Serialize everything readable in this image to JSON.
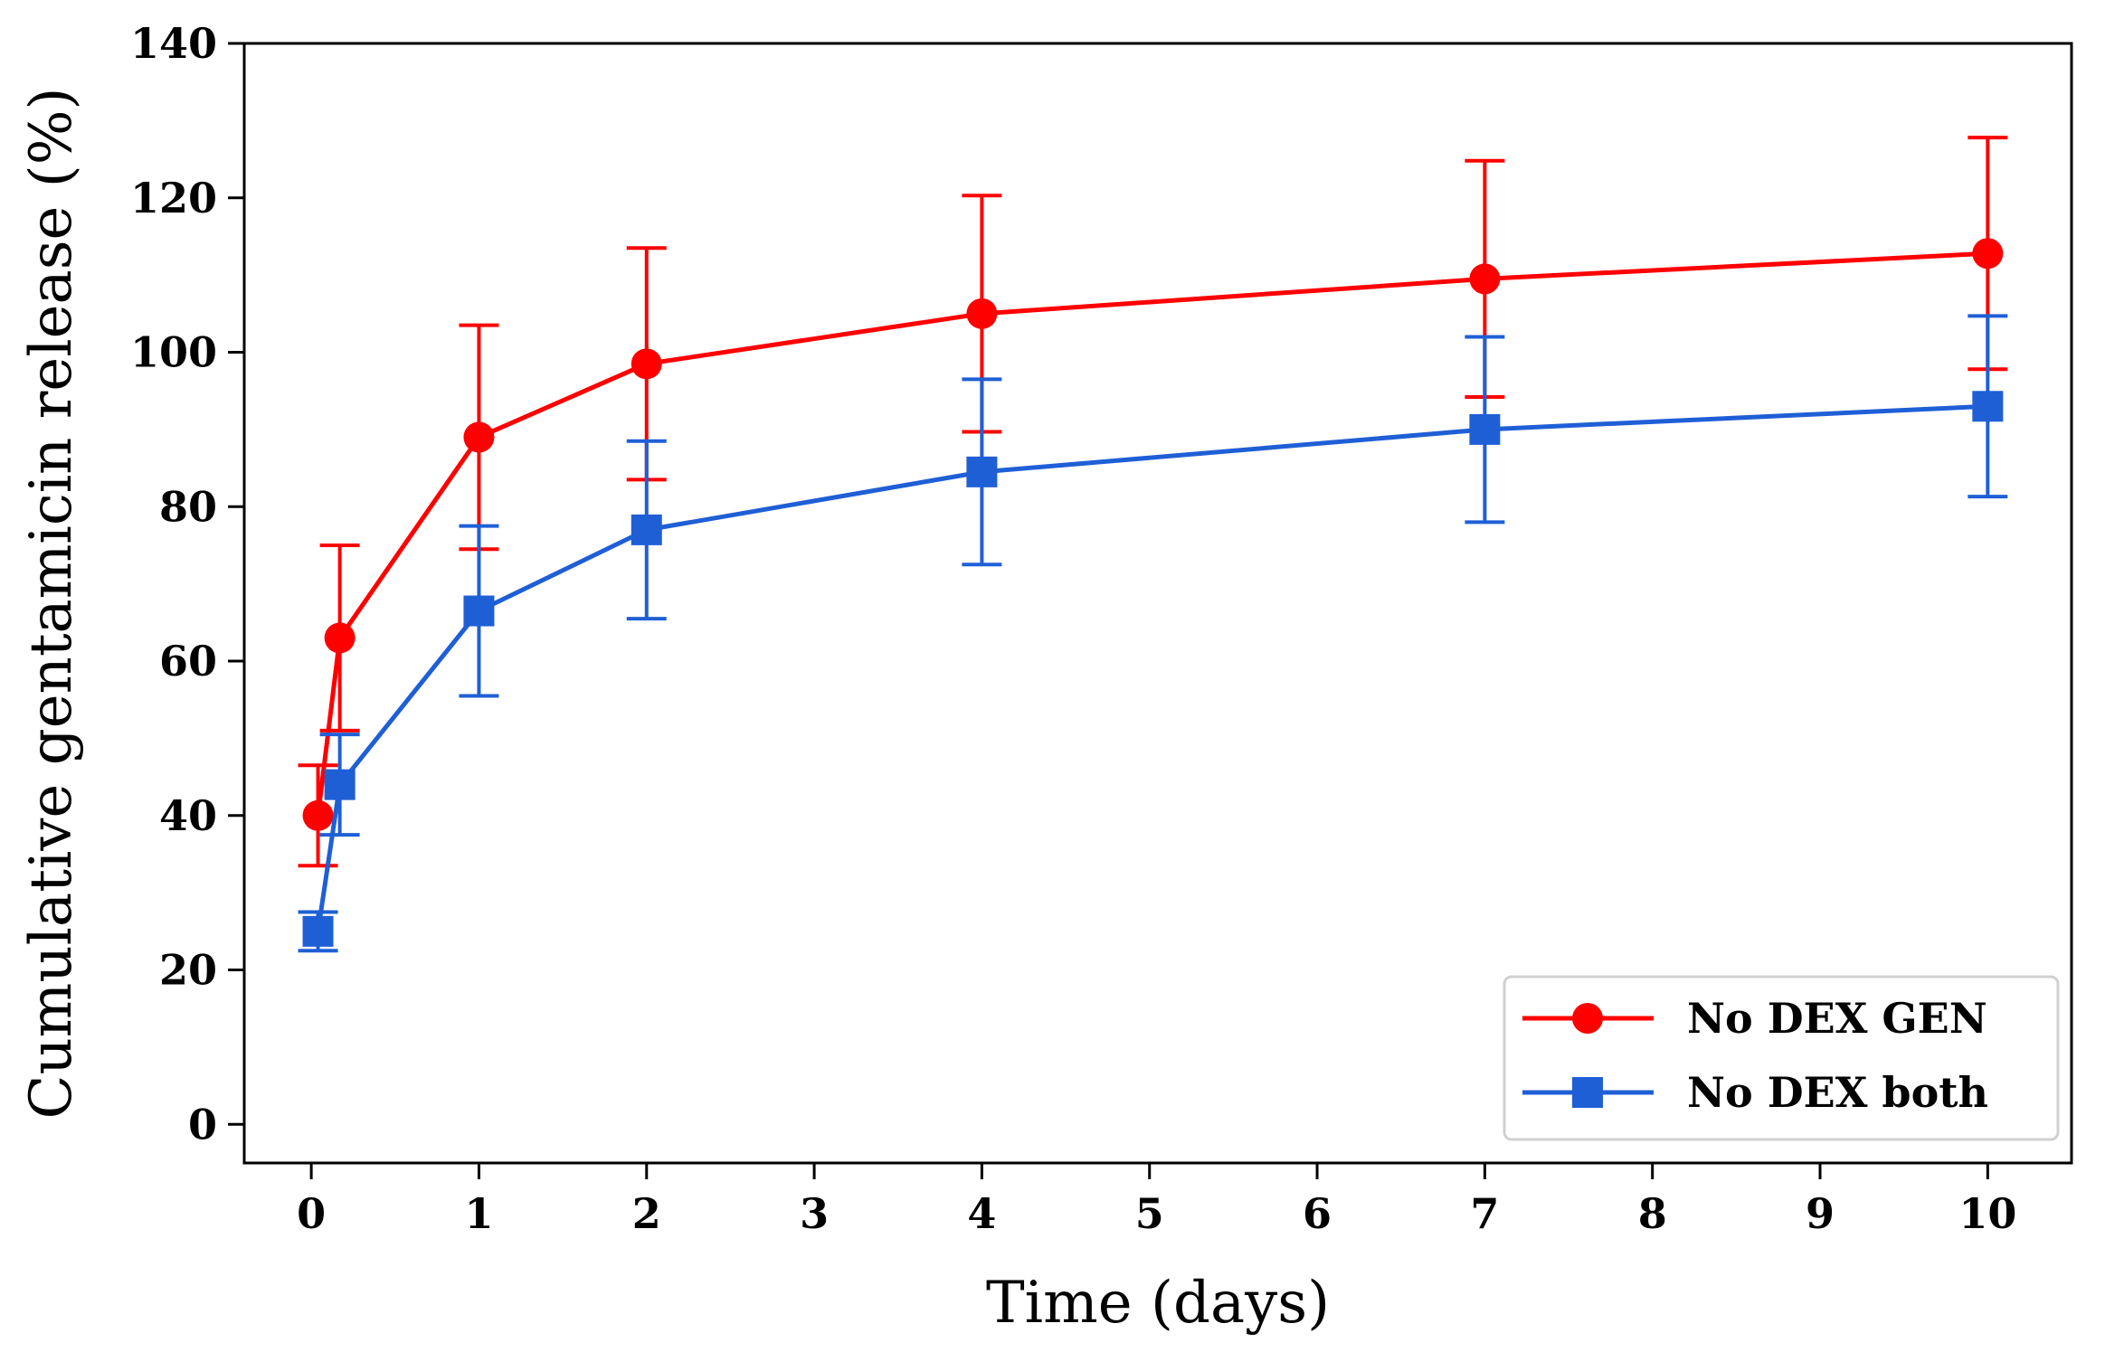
{
  "chart_data": {
    "type": "line",
    "title": "",
    "xlabel": "Time (days)",
    "ylabel": "Cumulative gentamicin release (%)",
    "xlim": [
      -0.4,
      10.5
    ],
    "ylim": [
      -5,
      140
    ],
    "xticks": [
      0,
      1,
      2,
      3,
      4,
      5,
      6,
      7,
      8,
      9,
      10
    ],
    "xtick_labels": [
      "0",
      "1",
      "2",
      "3",
      "4",
      "5",
      "6",
      "7",
      "8",
      "9",
      "10"
    ],
    "yticks": [
      0,
      20,
      40,
      60,
      80,
      100,
      120,
      140
    ],
    "ytick_labels": [
      "0",
      "20",
      "40",
      "60",
      "80",
      "100",
      "120",
      "140"
    ],
    "grid": false,
    "legend_position": "lower-right",
    "series": [
      {
        "name": "No DEX GEN",
        "color": "#ff0000",
        "marker": "circle",
        "x": [
          0.04,
          0.17,
          1,
          2,
          4,
          7,
          10
        ],
        "y": [
          40,
          63,
          89,
          98.5,
          105,
          109.5,
          112.8
        ],
        "err": [
          6.5,
          12,
          14.5,
          15,
          15.3,
          15.3,
          15
        ]
      },
      {
        "name": "No DEX both",
        "color": "#1f5fd6",
        "marker": "square",
        "x": [
          0.04,
          0.17,
          1,
          2,
          4,
          7,
          10
        ],
        "y": [
          25,
          44,
          66.5,
          77,
          84.5,
          90,
          93
        ],
        "err": [
          2.5,
          6.5,
          11,
          11.5,
          12,
          12,
          11.7
        ]
      }
    ]
  }
}
